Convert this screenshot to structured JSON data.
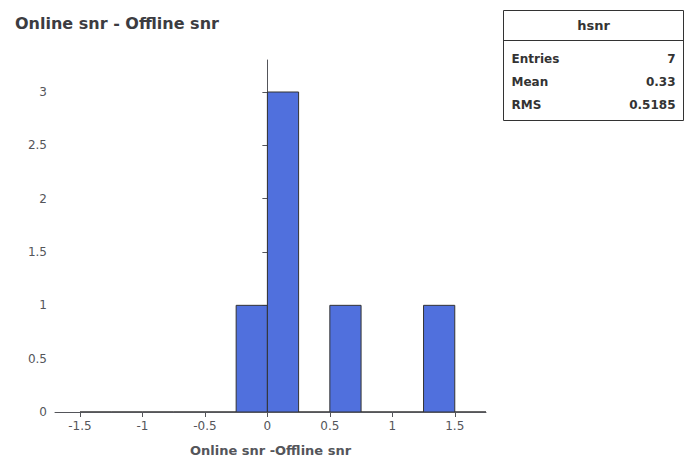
{
  "chart_data": {
    "type": "histogram",
    "title": "Online snr - Offline snr",
    "xlabel": "Online snr -Offline snr",
    "bins": [
      -1.5,
      -1.25,
      -1.0,
      -0.75,
      -0.5,
      -0.25,
      0.0,
      0.25,
      0.5,
      0.75,
      1.0,
      1.25,
      1.5,
      1.75
    ],
    "values": [
      0,
      0,
      0,
      0,
      0,
      1,
      3,
      0,
      1,
      0,
      0,
      1,
      0
    ],
    "xlim": [
      -1.7,
      1.75
    ],
    "ylim": [
      0,
      3.3
    ],
    "xticks": [
      -1.5,
      -1,
      -0.5,
      0,
      0.5,
      1,
      1.5
    ],
    "yticks": [
      0,
      0.5,
      1,
      1.5,
      2,
      2.5,
      3
    ],
    "grid": false,
    "annotations": [
      {
        "text": "hsnr",
        "rows": [
          {
            "label": "Entries",
            "value": 7
          },
          {
            "label": "Mean",
            "value": 0.33
          },
          {
            "label": "RMS",
            "value": 0.5185
          }
        ]
      }
    ]
  }
}
